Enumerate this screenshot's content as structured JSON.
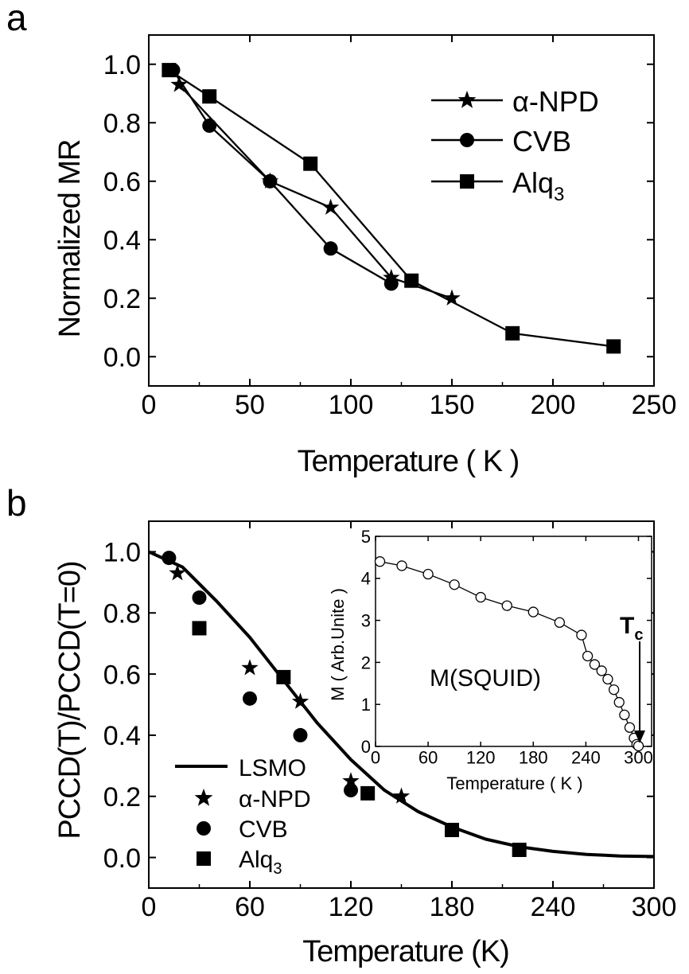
{
  "chart_data": [
    {
      "panel_label": "a",
      "type": "line",
      "xlabel": "Temperature ( K )",
      "ylabel": "Normalized MR",
      "xlim": [
        0,
        250
      ],
      "ylim": [
        -0.1,
        1.1
      ],
      "xticks": [
        "0",
        "50",
        "100",
        "150",
        "200",
        "250"
      ],
      "yticks": [
        "0.0",
        "0.2",
        "0.4",
        "0.6",
        "0.8",
        "1.0"
      ],
      "legend_position": "top-right",
      "series": [
        {
          "name": "α-NPD",
          "marker": "star",
          "x": [
            15,
            60,
            90,
            120,
            150
          ],
          "y": [
            0.93,
            0.6,
            0.51,
            0.27,
            0.2
          ]
        },
        {
          "name": "CVB",
          "marker": "circle",
          "x": [
            12,
            30,
            60,
            90,
            120
          ],
          "y": [
            0.98,
            0.79,
            0.6,
            0.37,
            0.25
          ]
        },
        {
          "name": "Alq",
          "name_sub": "3",
          "marker": "square",
          "x": [
            10,
            30,
            80,
            130,
            180,
            230
          ],
          "y": [
            0.98,
            0.89,
            0.66,
            0.26,
            0.08,
            0.035
          ]
        }
      ]
    },
    {
      "panel_label": "b",
      "type": "scatter",
      "xlabel": "Temperature (K)",
      "ylabel": "PCCD(T)/PCCD(T=0)",
      "xlim": [
        0,
        300
      ],
      "ylim": [
        -0.1,
        1.1
      ],
      "xticks": [
        "0",
        "60",
        "120",
        "180",
        "240",
        "300"
      ],
      "yticks": [
        "0.0",
        "0.2",
        "0.4",
        "0.6",
        "0.8",
        "1.0"
      ],
      "legend_position": "bottom-left",
      "series": [
        {
          "name": "LSMO",
          "marker": "line",
          "x": [
            0,
            20,
            40,
            60,
            80,
            100,
            120,
            140,
            160,
            180,
            200,
            220,
            240,
            260,
            280,
            300
          ],
          "y": [
            1.0,
            0.95,
            0.84,
            0.72,
            0.58,
            0.44,
            0.32,
            0.22,
            0.15,
            0.1,
            0.06,
            0.035,
            0.02,
            0.01,
            0.005,
            0.003
          ]
        },
        {
          "name": "α-NPD",
          "marker": "star",
          "x": [
            17,
            60,
            90,
            120,
            150
          ],
          "y": [
            0.93,
            0.62,
            0.51,
            0.25,
            0.2
          ]
        },
        {
          "name": "CVB",
          "marker": "circle",
          "x": [
            12,
            30,
            60,
            90,
            120
          ],
          "y": [
            0.98,
            0.85,
            0.52,
            0.4,
            0.22
          ]
        },
        {
          "name": "Alq",
          "name_sub": "3",
          "marker": "square",
          "x": [
            30,
            80,
            130,
            180,
            220
          ],
          "y": [
            0.75,
            0.59,
            0.21,
            0.09,
            0.025
          ]
        }
      ],
      "inset": {
        "type": "line",
        "xlabel": "Temperature ( K )",
        "ylabel": "M ( Arb.Unite )",
        "xlim": [
          0,
          315
        ],
        "ylim": [
          0,
          5
        ],
        "xticks": [
          "0",
          "60",
          "120",
          "180",
          "240",
          "300"
        ],
        "yticks": [
          "0",
          "1",
          "2",
          "3",
          "4",
          "5"
        ],
        "series_label": "M(SQUID)",
        "annotation": "T",
        "annotation_sub": "c",
        "annotation_x": 300,
        "series": [
          {
            "name": "M(SQUID)",
            "marker": "open-circle",
            "x": [
              5,
              30,
              60,
              90,
              120,
              150,
              180,
              210,
              235,
              242,
              250,
              258,
              265,
              272,
              278,
              284,
              290,
              295,
              298,
              300
            ],
            "y": [
              4.4,
              4.3,
              4.1,
              3.85,
              3.55,
              3.35,
              3.2,
              2.95,
              2.65,
              2.15,
              1.95,
              1.8,
              1.6,
              1.35,
              1.05,
              0.75,
              0.45,
              0.2,
              0.05,
              0.01
            ]
          }
        ]
      }
    }
  ]
}
